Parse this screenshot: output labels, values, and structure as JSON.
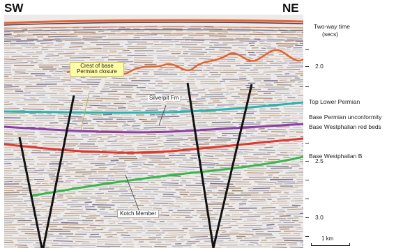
{
  "corners": {
    "left": "SW",
    "right": "NE"
  },
  "axis": {
    "title_line1": "Two-way time",
    "title_line2": "(secs)",
    "ticks": [
      "2.0",
      "2.5",
      "3.0"
    ]
  },
  "horizon_labels": {
    "top_lower_permian": "Top Lower Permian",
    "base_permian_unconformity": "Base Permian unconformity",
    "base_westphalian_red_beds": "Base Westphalian red beds",
    "base_westphalian_b": "Base Westphalian B"
  },
  "callouts": {
    "crest_line1": "Crest of base",
    "crest_line2": "Permian closure",
    "sherpit": "Silverpit Fm",
    "kotch": "Kotch Member"
  },
  "scale": {
    "label": "1 km"
  },
  "colors": {
    "horizon_orange": "#e8622a",
    "horizon_cyan": "#2ab3b0",
    "horizon_purple": "#8a3ea8",
    "horizon_red": "#e0382c",
    "horizon_green": "#36b84a",
    "fault": "#111111",
    "callout_box": "#fffca8"
  }
}
